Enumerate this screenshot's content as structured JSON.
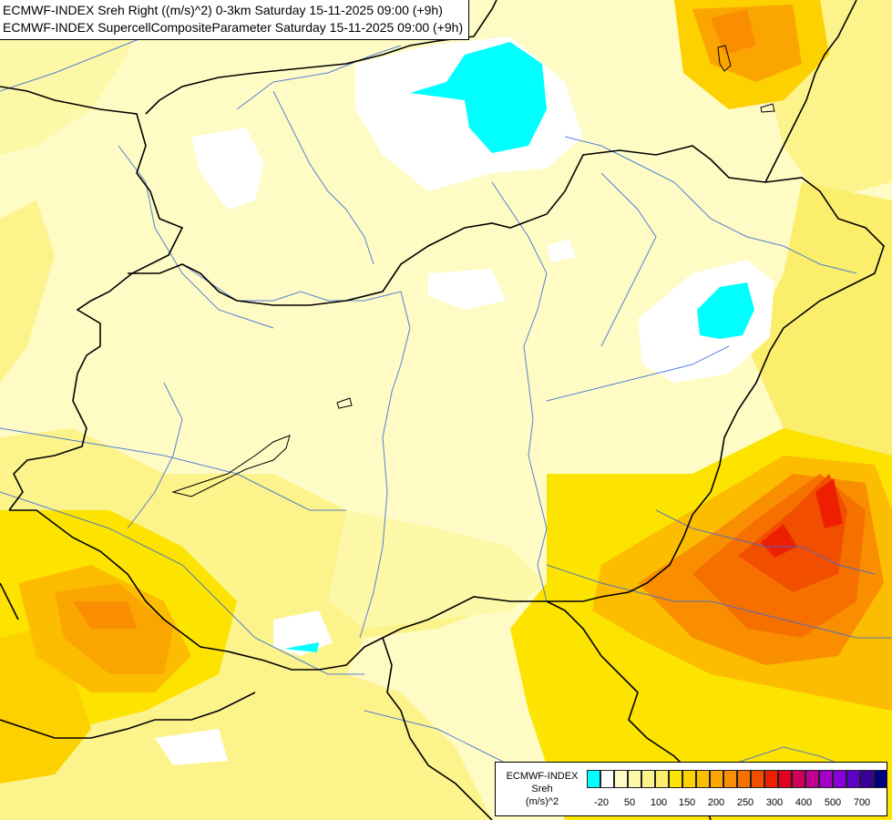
{
  "header": {
    "line1": "ECMWF-INDEX Sreh Right ((m/s)^2) 0-3km Saturday 15-11-2025 09:00 (+9h)",
    "line2": "ECMWF-INDEX SupercellCompositeParameter Saturday 15-11-2025 09:00 (+9h)"
  },
  "legend": {
    "title": "ECMWF-INDEX",
    "variable": "Sreh",
    "unit": "(m/s)^2",
    "colors": [
      "#00ffff",
      "#ffffff",
      "#fefbc4",
      "#fdf8a8",
      "#fcf38b",
      "#fbee6c",
      "#fde300",
      "#fdd000",
      "#fcbd00",
      "#fba600",
      "#f98e00",
      "#f67000",
      "#f24e00",
      "#ee1f00",
      "#e10020",
      "#d0005a",
      "#c00090",
      "#a500c7",
      "#8700d9",
      "#5d00c8",
      "#3b009b",
      "#000080"
    ],
    "ticks": [
      "-20",
      "50",
      "100",
      "150",
      "200",
      "250",
      "300",
      "400",
      "500",
      "700"
    ]
  }
}
